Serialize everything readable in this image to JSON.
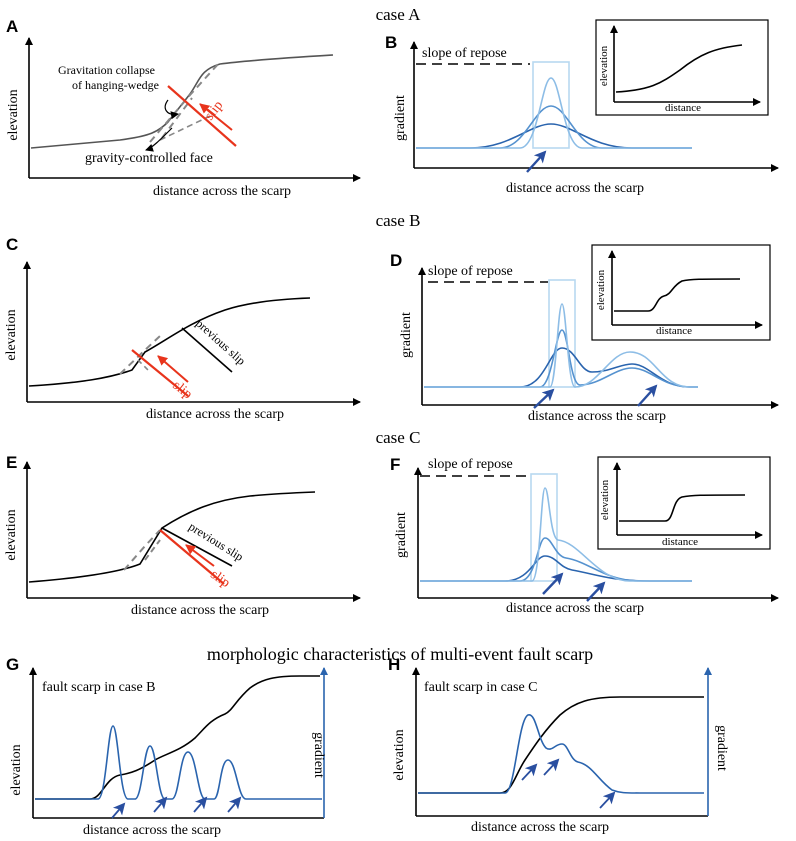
{
  "colors": {
    "slip": "#e8341c",
    "blue_dark": "#2a64ae",
    "blue_mid": "#5592cf",
    "blue_light": "#8dbde6",
    "blue_pale": "#b8d8f0",
    "arrow": "#2a4fa0",
    "gray": "#555555",
    "dash": "#888888"
  },
  "cases": {
    "a": "case A",
    "b": "case B",
    "c": "case C"
  },
  "panels": {
    "A": {
      "letter": "A",
      "ylabel": "elevation",
      "xlabel": "distance across the scarp",
      "annotation_line1": "Gravitation collapse",
      "annotation_line2": "of hanging-wedge",
      "slip": "slip",
      "face": "gravity-controlled face"
    },
    "B": {
      "letter": "B",
      "ylabel": "gradient",
      "xlabel": "distance across the scarp",
      "repose": "slope of repose",
      "inset_ylabel": "elevation",
      "inset_xlabel": "distance"
    },
    "C": {
      "letter": "C",
      "ylabel": "elevation",
      "xlabel": "distance across the scarp",
      "slip": "slip",
      "previous_slip": "previous slip"
    },
    "D": {
      "letter": "D",
      "ylabel": "gradient",
      "xlabel": "distance across the scarp",
      "repose": "slope of repose",
      "inset_ylabel": "elevation",
      "inset_xlabel": "distance"
    },
    "E": {
      "letter": "E",
      "ylabel": "elevation",
      "xlabel": "distance across the scarp",
      "slip": "slip",
      "previous_slip": "previous slip"
    },
    "F": {
      "letter": "F",
      "ylabel": "gradient",
      "xlabel": "distance across the scarp",
      "repose": "slope of repose",
      "inset_ylabel": "elevation",
      "inset_xlabel": "distance"
    },
    "G": {
      "letter": "G",
      "title": "fault scarp in  case B",
      "ylabel_left": "elevation",
      "ylabel_right": "gradient",
      "xlabel": "distance across the scarp"
    },
    "H": {
      "letter": "H",
      "title": "fault scarp in case C",
      "ylabel_left": "elevation",
      "ylabel_right": "gradient",
      "xlabel": "distance across the scarp"
    }
  },
  "bottom_heading": "morphologic characteristics of multi-event fault scarp"
}
